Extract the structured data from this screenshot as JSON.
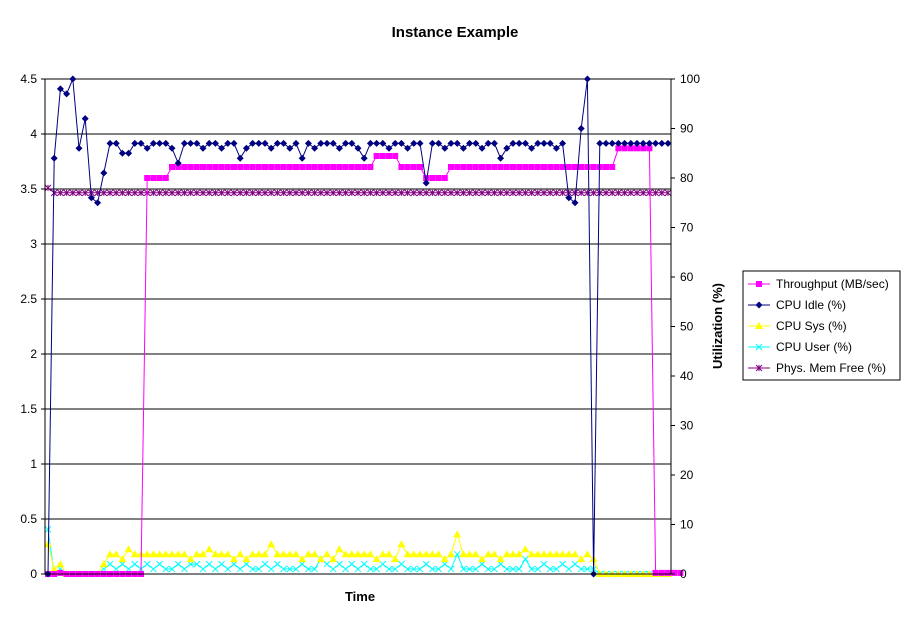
{
  "chart_data": {
    "type": "line",
    "title": "Instance Example",
    "xlabel": "Time",
    "ylabel_left": "",
    "ylabel_right": "Utilization (%)",
    "ylim_left": [
      0,
      4.5
    ],
    "ylim_right": [
      0,
      100
    ],
    "yticks_left": [
      "0",
      "0.5",
      "1",
      "1.5",
      "2",
      "2.5",
      "3",
      "3.5",
      "4",
      "4.5"
    ],
    "yticks_right": [
      "0",
      "10",
      "20",
      "30",
      "40",
      "50",
      "60",
      "70",
      "80",
      "90",
      "100"
    ],
    "grid": "horizontal",
    "legend_position": "right",
    "x_count": 101,
    "series": [
      {
        "name": "Throughput (MB/sec)",
        "axis": "left",
        "color": "#ff00ff",
        "marker": "square",
        "values": [
          0,
          0,
          0.01,
          0,
          0,
          0,
          0,
          0,
          0,
          0,
          0,
          0,
          0,
          0,
          0,
          0,
          3.6,
          3.6,
          3.6,
          3.6,
          3.7,
          3.7,
          3.7,
          3.7,
          3.7,
          3.7,
          3.7,
          3.7,
          3.7,
          3.7,
          3.7,
          3.7,
          3.7,
          3.7,
          3.7,
          3.7,
          3.7,
          3.7,
          3.7,
          3.7,
          3.7,
          3.7,
          3.7,
          3.7,
          3.7,
          3.7,
          3.7,
          3.7,
          3.7,
          3.7,
          3.7,
          3.7,
          3.7,
          3.8,
          3.8,
          3.8,
          3.8,
          3.7,
          3.7,
          3.7,
          3.7,
          3.6,
          3.6,
          3.6,
          3.6,
          3.7,
          3.7,
          3.7,
          3.7,
          3.7,
          3.7,
          3.7,
          3.7,
          3.7,
          3.7,
          3.7,
          3.7,
          3.7,
          3.7,
          3.7,
          3.7,
          3.7,
          3.7,
          3.7,
          3.7,
          3.7,
          3.7,
          3.7,
          3.7,
          3.7,
          3.7,
          3.7,
          3.87,
          3.87,
          3.87,
          3.87,
          3.87,
          3.87,
          0.01,
          0.01,
          0.01,
          0.01,
          0.01
        ]
      },
      {
        "name": "CPU Idle (%)",
        "axis": "right",
        "color": "#000080",
        "marker": "diamond",
        "values": [
          0,
          84,
          98,
          97,
          100,
          86,
          92,
          76,
          75,
          81,
          87,
          87,
          85,
          85,
          87,
          87,
          86,
          87,
          87,
          87,
          86,
          83,
          87,
          87,
          87,
          86,
          87,
          87,
          86,
          87,
          87,
          84,
          86,
          87,
          87,
          87,
          86,
          87,
          87,
          86,
          87,
          84,
          87,
          86,
          87,
          87,
          87,
          86,
          87,
          87,
          86,
          84,
          87,
          87,
          87,
          86,
          87,
          87,
          86,
          87,
          87,
          79,
          87,
          87,
          86,
          87,
          87,
          86,
          87,
          87,
          86,
          87,
          87,
          84,
          86,
          87,
          87,
          87,
          86,
          87,
          87,
          87,
          86,
          87,
          76,
          75,
          90,
          100,
          0,
          87,
          87,
          87,
          87,
          87,
          87,
          87,
          87,
          87,
          87,
          87,
          87
        ]
      },
      {
        "name": "CPU Sys (%)",
        "axis": "right",
        "color": "#ffff00",
        "marker": "triangle",
        "values": [
          6,
          1,
          2,
          0,
          0,
          0,
          0,
          0,
          0,
          2,
          4,
          4,
          3,
          5,
          4,
          4,
          4,
          4,
          4,
          4,
          4,
          4,
          4,
          3,
          4,
          4,
          5,
          4,
          4,
          4,
          3,
          4,
          3,
          4,
          4,
          4,
          6,
          4,
          4,
          4,
          4,
          3,
          4,
          4,
          3,
          4,
          3,
          5,
          4,
          4,
          4,
          4,
          4,
          3,
          4,
          4,
          3,
          6,
          4,
          4,
          4,
          4,
          4,
          4,
          3,
          4,
          8,
          4,
          4,
          4,
          3,
          4,
          4,
          3,
          4,
          4,
          4,
          5,
          4,
          4,
          4,
          4,
          4,
          4,
          4,
          4,
          3,
          4,
          3,
          0,
          0,
          0,
          0,
          0,
          0,
          0,
          0,
          0,
          0,
          0,
          0
        ]
      },
      {
        "name": "CPU User (%)",
        "axis": "right",
        "color": "#00ffff",
        "marker": "x",
        "values": [
          9,
          0,
          1,
          0,
          0,
          0,
          0,
          0,
          0,
          1,
          2,
          1,
          2,
          1,
          2,
          1,
          2,
          1,
          2,
          1,
          1,
          2,
          1,
          2,
          2,
          1,
          2,
          1,
          2,
          1,
          2,
          1,
          2,
          1,
          1,
          2,
          1,
          2,
          1,
          1,
          1,
          2,
          1,
          1,
          3,
          2,
          1,
          2,
          1,
          2,
          1,
          2,
          1,
          1,
          2,
          1,
          1,
          2,
          1,
          1,
          1,
          2,
          1,
          1,
          2,
          1,
          4,
          1,
          1,
          1,
          2,
          1,
          1,
          2,
          1,
          1,
          1,
          3,
          1,
          1,
          2,
          1,
          1,
          2,
          1,
          2,
          1,
          1,
          1,
          0,
          0,
          0,
          0,
          0,
          0,
          0,
          0,
          0,
          0,
          0,
          0
        ]
      },
      {
        "name": "Phys. Mem Free (%)",
        "axis": "right",
        "color": "#800080",
        "marker": "star",
        "values": [
          78,
          77,
          77,
          77,
          77,
          77,
          77,
          77,
          77,
          77,
          77,
          77,
          77,
          77,
          77,
          77,
          77,
          77,
          77,
          77,
          77,
          77,
          77,
          77,
          77,
          77,
          77,
          77,
          77,
          77,
          77,
          77,
          77,
          77,
          77,
          77,
          77,
          77,
          77,
          77,
          77,
          77,
          77,
          77,
          77,
          77,
          77,
          77,
          77,
          77,
          77,
          77,
          77,
          77,
          77,
          77,
          77,
          77,
          77,
          77,
          77,
          77,
          77,
          77,
          77,
          77,
          77,
          77,
          77,
          77,
          77,
          77,
          77,
          77,
          77,
          77,
          77,
          77,
          77,
          77,
          77,
          77,
          77,
          77,
          77,
          77,
          77,
          77,
          77,
          77,
          77,
          77,
          77,
          77,
          77,
          77,
          77,
          77,
          77,
          77,
          77
        ]
      }
    ]
  }
}
